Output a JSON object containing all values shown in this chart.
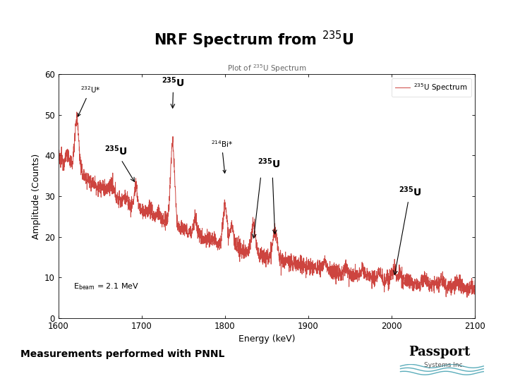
{
  "title": "NRF Spectrum from $^{235}$U",
  "subplot_title": "Plot of $^{235}$U Spectrum",
  "xlabel": "Energy (keV)",
  "ylabel": "Amplitude (Counts)",
  "xlim": [
    1600,
    2100
  ],
  "ylim": [
    0,
    60
  ],
  "yticks": [
    0,
    10,
    20,
    30,
    40,
    50,
    60
  ],
  "xticks": [
    1600,
    1700,
    1800,
    1900,
    2000,
    2100
  ],
  "legend_label": "$^{235}$U Spectrum",
  "line_color": "#c8302a",
  "background_color": "#ffffff",
  "slide_line_color": "#aaccdd",
  "ebeam_text": "E$_{beam}$ = 2.1 MeV",
  "seed": 12345
}
